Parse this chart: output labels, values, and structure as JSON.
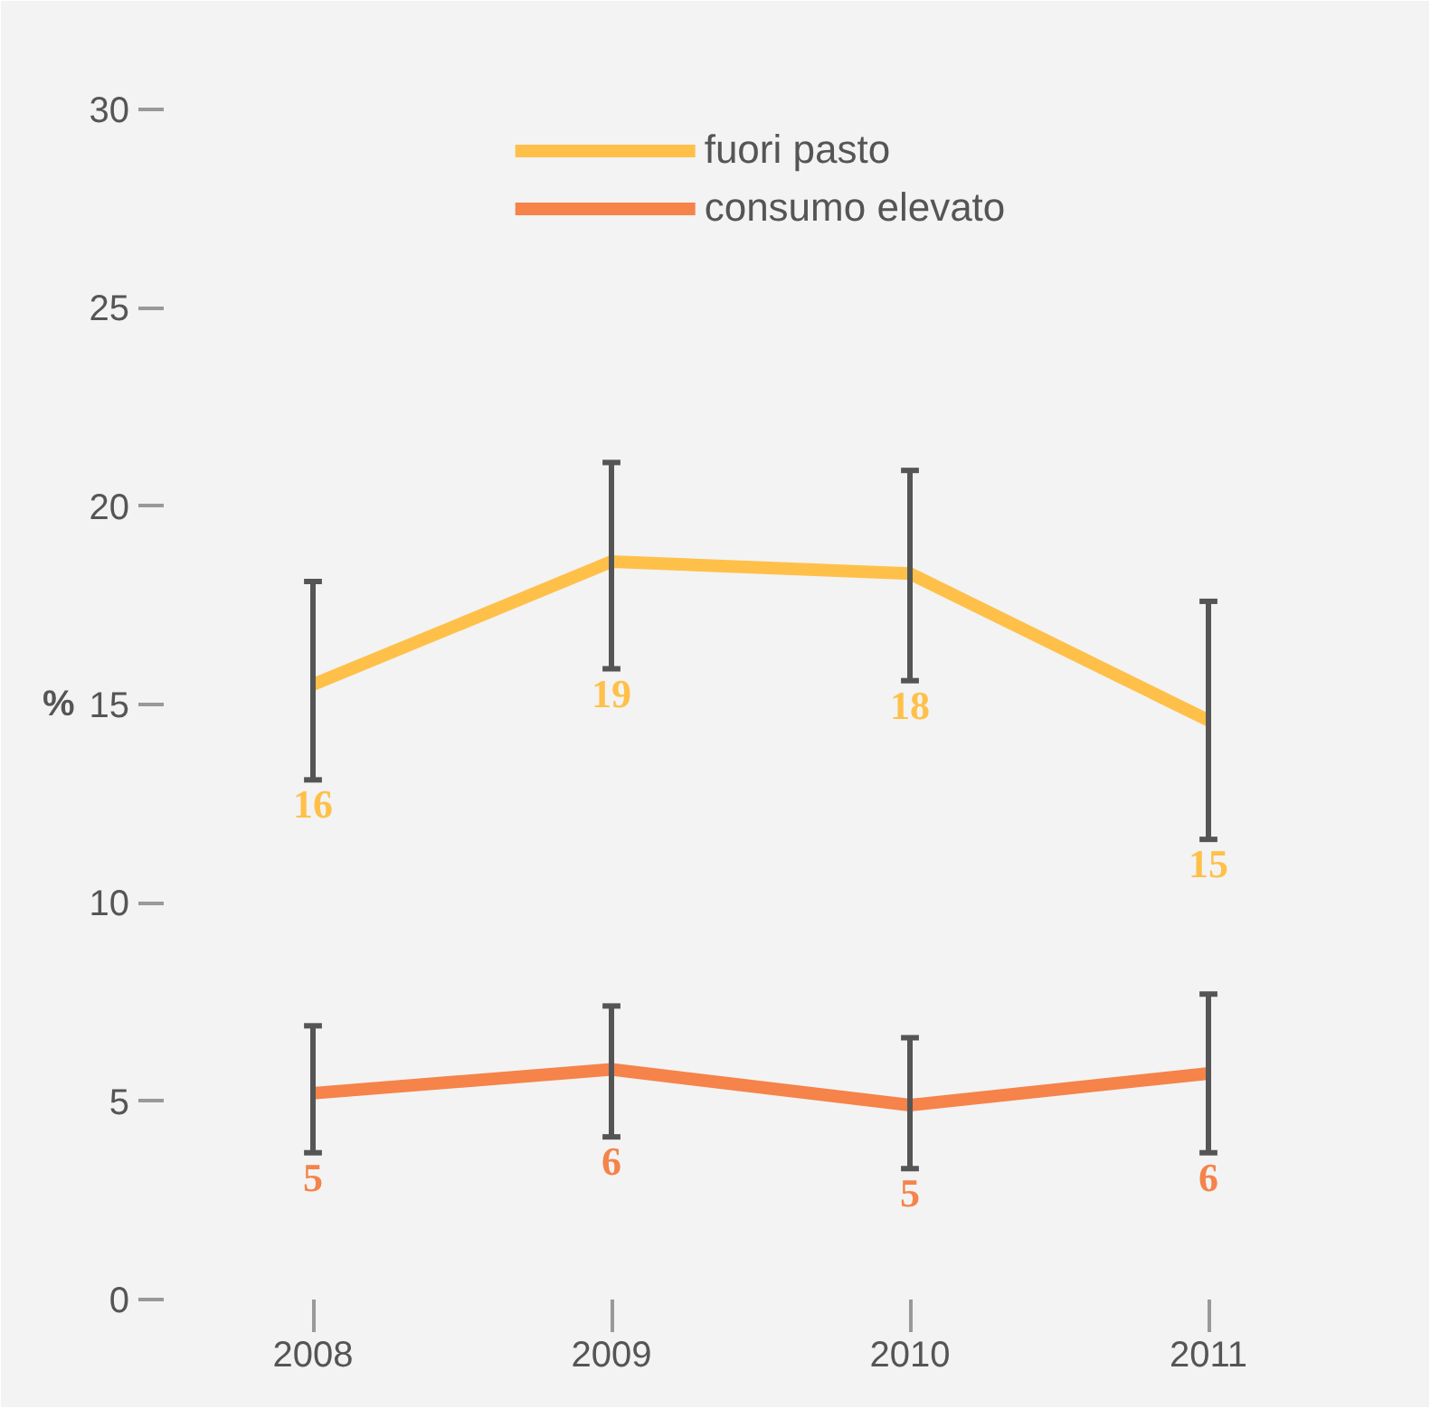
{
  "chart_data": {
    "type": "line",
    "ylabel": "%",
    "categories": [
      "2008",
      "2009",
      "2010",
      "2011"
    ],
    "series": [
      {
        "name": "fuori pasto",
        "color": "#ffc04a",
        "values": [
          15.5,
          18.6,
          18.3,
          14.6
        ],
        "errors": [
          [
            13.1,
            18.1
          ],
          [
            15.9,
            21.1
          ],
          [
            15.6,
            20.9
          ],
          [
            11.6,
            17.6
          ]
        ],
        "value_labels": [
          "16",
          "19",
          "18",
          "15"
        ]
      },
      {
        "name": "consumo elevato",
        "color": "#f5834a",
        "values": [
          5.2,
          5.8,
          4.9,
          5.7
        ],
        "errors": [
          [
            3.7,
            6.9
          ],
          [
            4.1,
            7.4
          ],
          [
            3.3,
            6.6
          ],
          [
            3.7,
            7.7
          ]
        ],
        "value_labels": [
          "5",
          "6",
          "5",
          "6"
        ]
      }
    ],
    "ylim": [
      0,
      30
    ],
    "yticks": [
      0,
      5,
      10,
      15,
      20,
      25,
      30
    ],
    "grid": false,
    "legend": "top",
    "marker": "none",
    "line_style": "solid"
  }
}
